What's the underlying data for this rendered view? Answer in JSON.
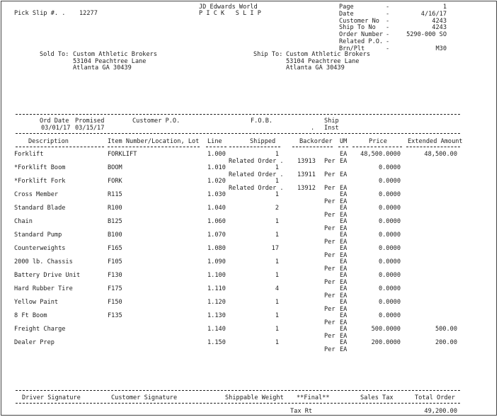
{
  "header": {
    "pick_slip_label": "Pick Slip #. .",
    "pick_slip_number": "12277",
    "company": "JD Edwards World",
    "doc_title": "P I C K   S L I P",
    "fields": [
      {
        "label": "Page",
        "value": "1"
      },
      {
        "label": "Date",
        "value": "4/16/17"
      },
      {
        "label": "Customer No",
        "value": "4243"
      },
      {
        "label": "Ship To No",
        "value": "4243"
      },
      {
        "label": "Order Number",
        "value": "5290-000 SO"
      },
      {
        "label": "Related P.O.",
        "value": ""
      },
      {
        "label": "Brn/Plt",
        "value": "M30"
      }
    ]
  },
  "sold_to": {
    "label": "Sold To:",
    "name": "Custom Athletic Brokers",
    "address1": "53104 Peachtree Lane",
    "address2": "Atlanta GA 30439"
  },
  "ship_to": {
    "label": "Ship To:",
    "name": "Custom Athletic Brokers",
    "address1": "53104 Peachtree Lane",
    "address2": "Atlanta GA 30439"
  },
  "order_info": {
    "ord_date_label": "Ord Date",
    "promised_label": "Promised",
    "customer_po_label": "Customer P.O.",
    "fob_label": "F.O.B.",
    "ship_label": "Ship",
    "inst_label": "Inst",
    "ord_date": "03/01/17",
    "promised": "03/15/17",
    "dot": "."
  },
  "columns": {
    "description": "Description",
    "item": "Item Number/Location, Lot",
    "line": "Line",
    "shipped": "Shipped",
    "backorder": "Backorder",
    "um": "UM",
    "price": "Price",
    "extended": "Extended Amount"
  },
  "rows": [
    {
      "description": "Forklift",
      "item": "FORKLIFT",
      "line": "1.000",
      "shipped": "1",
      "um": "EA",
      "price": "48,500.0000",
      "extended": "48,500.00",
      "related_label": "Related Order .",
      "related_order": "13913",
      "per": "Per",
      "per_um": "EA"
    },
    {
      "description": "*Forklift Boom",
      "item": "BOOM",
      "line": "1.010",
      "shipped": "1",
      "um": "",
      "price": "0.0000",
      "extended": "",
      "related_label": "Related Order .",
      "related_order": "13911",
      "per": "Per",
      "per_um": "EA"
    },
    {
      "description": "*Forklift Fork",
      "item": "FORK",
      "line": "1.020",
      "shipped": "1",
      "um": "",
      "price": "0.0000",
      "extended": "",
      "related_label": "Related Order .",
      "related_order": "13912",
      "per": "Per",
      "per_um": "EA"
    },
    {
      "description": "Cross Member",
      "item": "R115",
      "line": "1.030",
      "shipped": "1",
      "um": "EA",
      "price": "0.0000",
      "extended": "",
      "related_label": "",
      "related_order": "",
      "per": "Per",
      "per_um": "EA"
    },
    {
      "description": "Standard Blade",
      "item": "R100",
      "line": "1.040",
      "shipped": "2",
      "um": "EA",
      "price": "0.0000",
      "extended": "",
      "related_label": "",
      "related_order": "",
      "per": "Per",
      "per_um": "EA"
    },
    {
      "description": "Chain",
      "item": "B125",
      "line": "1.060",
      "shipped": "1",
      "um": "EA",
      "price": "0.0000",
      "extended": "",
      "related_label": "",
      "related_order": "",
      "per": "Per",
      "per_um": "EA"
    },
    {
      "description": "Standard Pump",
      "item": "B100",
      "line": "1.070",
      "shipped": "1",
      "um": "EA",
      "price": "0.0000",
      "extended": "",
      "related_label": "",
      "related_order": "",
      "per": "Per",
      "per_um": "EA"
    },
    {
      "description": "Counterweights",
      "item": "F165",
      "line": "1.080",
      "shipped": "17",
      "um": "EA",
      "price": "0.0000",
      "extended": "",
      "related_label": "",
      "related_order": "",
      "per": "Per",
      "per_um": "EA"
    },
    {
      "description": "2000 lb. Chassis",
      "item": "F105",
      "line": "1.090",
      "shipped": "1",
      "um": "EA",
      "price": "0.0000",
      "extended": "",
      "related_label": "",
      "related_order": "",
      "per": "Per",
      "per_um": "EA"
    },
    {
      "description": "Battery Drive Unit",
      "item": "F130",
      "line": "1.100",
      "shipped": "1",
      "um": "EA",
      "price": "0.0000",
      "extended": "",
      "related_label": "",
      "related_order": "",
      "per": "Per",
      "per_um": "EA"
    },
    {
      "description": "Hard Rubber Tire",
      "item": "F175",
      "line": "1.110",
      "shipped": "4",
      "um": "EA",
      "price": "0.0000",
      "extended": "",
      "related_label": "",
      "related_order": "",
      "per": "Per",
      "per_um": "EA"
    },
    {
      "description": "Yellow Paint",
      "item": "F150",
      "line": "1.120",
      "shipped": "1",
      "um": "EA",
      "price": "0.0000",
      "extended": "",
      "related_label": "",
      "related_order": "",
      "per": "Per",
      "per_um": "EA"
    },
    {
      "description": "8 Ft Boom",
      "item": "F135",
      "line": "1.130",
      "shipped": "1",
      "um": "EA",
      "price": "0.0000",
      "extended": "",
      "related_label": "",
      "related_order": "",
      "per": "Per",
      "per_um": "EA"
    },
    {
      "description": "Freight Charge",
      "item": "",
      "line": "1.140",
      "shipped": "1",
      "um": "EA",
      "price": "500.0000",
      "extended": "500.00",
      "related_label": "",
      "related_order": "",
      "per": "Per",
      "per_um": "EA"
    },
    {
      "description": "Dealer Prep",
      "item": "",
      "line": "1.150",
      "shipped": "1",
      "um": "EA",
      "price": "200.0000",
      "extended": "200.00",
      "related_label": "",
      "related_order": "",
      "per": "Per",
      "per_um": "EA"
    }
  ],
  "footer": {
    "driver_signature": "Driver Signature",
    "customer_signature": "Customer Signature",
    "shippable_weight": "Shippable Weight",
    "final": "**Final**",
    "sales_tax": "Sales Tax",
    "total_order": "Total Order",
    "tax_rt": "Tax Rt",
    "total_value": "49,200.00"
  }
}
